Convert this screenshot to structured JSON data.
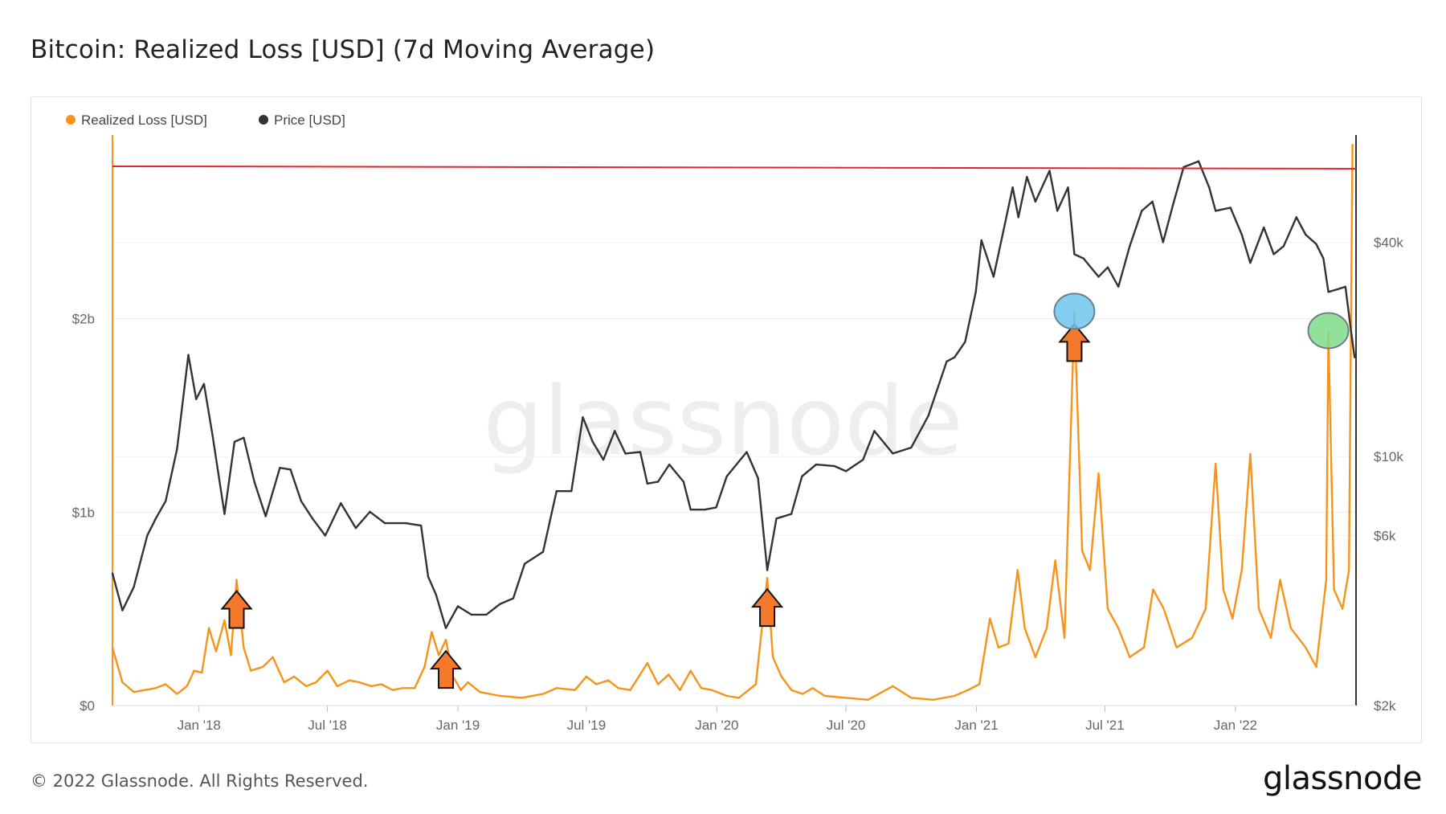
{
  "header": {
    "title": "Bitcoin: Realized Loss [USD] (7d Moving Average)"
  },
  "footer": {
    "copyright": "© 2022 Glassnode. All Rights Reserved.",
    "logo": "glassnode"
  },
  "watermark": "glassnode",
  "colors": {
    "loss": "#f7931a",
    "price": "#333333",
    "ath_line": "#e0262b",
    "arrow": "#f5792a",
    "blue_marker": "#6ec6f0",
    "green_marker": "#7fdc8a"
  },
  "icons": [
    "up-arrow-icon",
    "circle-marker-icon"
  ],
  "chart_data": {
    "type": "line",
    "title": "Bitcoin: Realized Loss [USD] (7d Moving Average)",
    "legend": {
      "placement": "top-left",
      "items": [
        {
          "label": "Realized Loss [USD]",
          "color": "#f7931a"
        },
        {
          "label": "Price [USD]",
          "color": "#333333"
        }
      ]
    },
    "x_ticks": [
      "Jan '18",
      "Jul '18",
      "Jan '19",
      "Jul '19",
      "Jan '20",
      "Jul '20",
      "Jan '21",
      "Jul '21",
      "Jan '22"
    ],
    "x_tick_dates": [
      "2018-01-01",
      "2018-07-01",
      "2019-01-01",
      "2019-07-01",
      "2020-01-01",
      "2020-07-01",
      "2021-01-01",
      "2021-07-01",
      "2022-01-01"
    ],
    "x_range": [
      "2017-09-01",
      "2022-06-20"
    ],
    "y_left": {
      "ticks": [
        0,
        1000000000,
        2000000000
      ],
      "labels": [
        "$0",
        "$1b",
        "$2b"
      ],
      "range": [
        0,
        2950000000
      ]
    },
    "y_right": {
      "scale": "log",
      "ticks": [
        2000,
        6000,
        10000,
        40000
      ],
      "labels": [
        "$2k",
        "$6k",
        "$10k",
        "$40k"
      ],
      "range": [
        2000,
        80000
      ]
    },
    "series": [
      {
        "name": "Realized Loss [USD]",
        "axis": "left",
        "points": [
          [
            "2017-09-01",
            300000000
          ],
          [
            "2017-09-15",
            120000000
          ],
          [
            "2017-10-01",
            70000000
          ],
          [
            "2017-11-01",
            90000000
          ],
          [
            "2017-11-15",
            110000000
          ],
          [
            "2017-12-01",
            60000000
          ],
          [
            "2017-12-15",
            100000000
          ],
          [
            "2017-12-25",
            180000000
          ],
          [
            "2018-01-05",
            170000000
          ],
          [
            "2018-01-15",
            400000000
          ],
          [
            "2018-01-25",
            280000000
          ],
          [
            "2018-02-06",
            440000000
          ],
          [
            "2018-02-15",
            260000000
          ],
          [
            "2018-02-23",
            650000000
          ],
          [
            "2018-03-05",
            300000000
          ],
          [
            "2018-03-15",
            180000000
          ],
          [
            "2018-04-01",
            200000000
          ],
          [
            "2018-04-15",
            250000000
          ],
          [
            "2018-05-01",
            120000000
          ],
          [
            "2018-05-15",
            150000000
          ],
          [
            "2018-06-01",
            100000000
          ],
          [
            "2018-06-15",
            120000000
          ],
          [
            "2018-07-01",
            180000000
          ],
          [
            "2018-07-15",
            100000000
          ],
          [
            "2018-08-01",
            130000000
          ],
          [
            "2018-08-15",
            120000000
          ],
          [
            "2018-09-01",
            100000000
          ],
          [
            "2018-09-15",
            110000000
          ],
          [
            "2018-10-01",
            80000000
          ],
          [
            "2018-10-15",
            90000000
          ],
          [
            "2018-11-01",
            90000000
          ],
          [
            "2018-11-15",
            200000000
          ],
          [
            "2018-11-25",
            380000000
          ],
          [
            "2018-12-05",
            260000000
          ],
          [
            "2018-12-15",
            340000000
          ],
          [
            "2018-12-25",
            150000000
          ],
          [
            "2019-01-05",
            80000000
          ],
          [
            "2019-01-15",
            120000000
          ],
          [
            "2019-02-01",
            70000000
          ],
          [
            "2019-03-01",
            50000000
          ],
          [
            "2019-04-01",
            40000000
          ],
          [
            "2019-05-01",
            60000000
          ],
          [
            "2019-05-20",
            90000000
          ],
          [
            "2019-06-15",
            80000000
          ],
          [
            "2019-07-01",
            150000000
          ],
          [
            "2019-07-15",
            110000000
          ],
          [
            "2019-08-01",
            130000000
          ],
          [
            "2019-08-15",
            90000000
          ],
          [
            "2019-09-01",
            80000000
          ],
          [
            "2019-09-25",
            220000000
          ],
          [
            "2019-10-10",
            110000000
          ],
          [
            "2019-10-25",
            160000000
          ],
          [
            "2019-11-10",
            80000000
          ],
          [
            "2019-11-25",
            180000000
          ],
          [
            "2019-12-10",
            90000000
          ],
          [
            "2019-12-25",
            80000000
          ],
          [
            "2020-01-15",
            50000000
          ],
          [
            "2020-02-01",
            40000000
          ],
          [
            "2020-02-25",
            110000000
          ],
          [
            "2020-03-12",
            660000000
          ],
          [
            "2020-03-20",
            250000000
          ],
          [
            "2020-04-01",
            150000000
          ],
          [
            "2020-04-15",
            80000000
          ],
          [
            "2020-05-01",
            60000000
          ],
          [
            "2020-05-15",
            90000000
          ],
          [
            "2020-06-01",
            50000000
          ],
          [
            "2020-07-01",
            40000000
          ],
          [
            "2020-08-01",
            30000000
          ],
          [
            "2020-09-05",
            100000000
          ],
          [
            "2020-10-01",
            40000000
          ],
          [
            "2020-11-01",
            30000000
          ],
          [
            "2020-12-01",
            50000000
          ],
          [
            "2020-12-20",
            80000000
          ],
          [
            "2021-01-05",
            110000000
          ],
          [
            "2021-01-20",
            450000000
          ],
          [
            "2021-02-01",
            300000000
          ],
          [
            "2021-02-15",
            320000000
          ],
          [
            "2021-02-28",
            700000000
          ],
          [
            "2021-03-10",
            400000000
          ],
          [
            "2021-03-25",
            250000000
          ],
          [
            "2021-04-10",
            400000000
          ],
          [
            "2021-04-22",
            750000000
          ],
          [
            "2021-05-05",
            350000000
          ],
          [
            "2021-05-19",
            2030000000
          ],
          [
            "2021-05-30",
            800000000
          ],
          [
            "2021-06-10",
            700000000
          ],
          [
            "2021-06-22",
            1200000000
          ],
          [
            "2021-07-05",
            500000000
          ],
          [
            "2021-07-20",
            400000000
          ],
          [
            "2021-08-05",
            250000000
          ],
          [
            "2021-08-25",
            300000000
          ],
          [
            "2021-09-07",
            600000000
          ],
          [
            "2021-09-22",
            500000000
          ],
          [
            "2021-10-10",
            300000000
          ],
          [
            "2021-11-01",
            350000000
          ],
          [
            "2021-11-20",
            500000000
          ],
          [
            "2021-12-04",
            1250000000
          ],
          [
            "2021-12-15",
            600000000
          ],
          [
            "2021-12-28",
            450000000
          ],
          [
            "2022-01-10",
            700000000
          ],
          [
            "2022-01-22",
            1300000000
          ],
          [
            "2022-02-03",
            500000000
          ],
          [
            "2022-02-20",
            350000000
          ],
          [
            "2022-03-05",
            650000000
          ],
          [
            "2022-03-20",
            400000000
          ],
          [
            "2022-04-10",
            300000000
          ],
          [
            "2022-04-25",
            200000000
          ],
          [
            "2022-05-09",
            650000000
          ],
          [
            "2022-05-12",
            1930000000
          ],
          [
            "2022-05-20",
            600000000
          ],
          [
            "2022-06-01",
            500000000
          ],
          [
            "2022-06-10",
            700000000
          ],
          [
            "2022-06-15",
            2900000000
          ]
        ]
      },
      {
        "name": "Price [USD]",
        "axis": "right",
        "points": [
          [
            "2017-09-01",
            4700
          ],
          [
            "2017-09-15",
            3700
          ],
          [
            "2017-10-01",
            4300
          ],
          [
            "2017-10-20",
            6000
          ],
          [
            "2017-11-01",
            6700
          ],
          [
            "2017-11-15",
            7500
          ],
          [
            "2017-12-01",
            10500
          ],
          [
            "2017-12-17",
            19300
          ],
          [
            "2017-12-28",
            14500
          ],
          [
            "2018-01-08",
            16000
          ],
          [
            "2018-01-20",
            11500
          ],
          [
            "2018-02-06",
            6900
          ],
          [
            "2018-02-20",
            11000
          ],
          [
            "2018-03-05",
            11300
          ],
          [
            "2018-03-20",
            8500
          ],
          [
            "2018-04-05",
            6800
          ],
          [
            "2018-04-25",
            9300
          ],
          [
            "2018-05-10",
            9200
          ],
          [
            "2018-05-25",
            7500
          ],
          [
            "2018-06-10",
            6700
          ],
          [
            "2018-06-28",
            6000
          ],
          [
            "2018-07-20",
            7400
          ],
          [
            "2018-08-10",
            6300
          ],
          [
            "2018-08-30",
            7000
          ],
          [
            "2018-09-20",
            6500
          ],
          [
            "2018-10-20",
            6500
          ],
          [
            "2018-11-10",
            6400
          ],
          [
            "2018-11-20",
            4600
          ],
          [
            "2018-12-01",
            4100
          ],
          [
            "2018-12-15",
            3300
          ],
          [
            "2019-01-01",
            3800
          ],
          [
            "2019-01-20",
            3600
          ],
          [
            "2019-02-10",
            3600
          ],
          [
            "2019-03-01",
            3850
          ],
          [
            "2019-03-20",
            4000
          ],
          [
            "2019-04-05",
            5000
          ],
          [
            "2019-05-01",
            5400
          ],
          [
            "2019-05-20",
            8000
          ],
          [
            "2019-06-10",
            8000
          ],
          [
            "2019-06-26",
            12900
          ],
          [
            "2019-07-10",
            11000
          ],
          [
            "2019-07-25",
            9800
          ],
          [
            "2019-08-10",
            11800
          ],
          [
            "2019-08-25",
            10200
          ],
          [
            "2019-09-15",
            10300
          ],
          [
            "2019-09-25",
            8400
          ],
          [
            "2019-10-10",
            8500
          ],
          [
            "2019-10-26",
            9500
          ],
          [
            "2019-11-15",
            8500
          ],
          [
            "2019-11-25",
            7100
          ],
          [
            "2019-12-15",
            7100
          ],
          [
            "2019-12-31",
            7200
          ],
          [
            "2020-01-15",
            8800
          ],
          [
            "2020-02-12",
            10300
          ],
          [
            "2020-02-28",
            8700
          ],
          [
            "2020-03-12",
            4800
          ],
          [
            "2020-03-25",
            6700
          ],
          [
            "2020-04-15",
            6900
          ],
          [
            "2020-04-30",
            8800
          ],
          [
            "2020-05-20",
            9500
          ],
          [
            "2020-06-15",
            9400
          ],
          [
            "2020-07-01",
            9100
          ],
          [
            "2020-07-25",
            9800
          ],
          [
            "2020-08-10",
            11800
          ],
          [
            "2020-09-05",
            10200
          ],
          [
            "2020-10-01",
            10600
          ],
          [
            "2020-10-25",
            13000
          ],
          [
            "2020-11-20",
            18500
          ],
          [
            "2020-12-01",
            19000
          ],
          [
            "2020-12-16",
            21000
          ],
          [
            "2020-12-31",
            29000
          ],
          [
            "2021-01-08",
            40500
          ],
          [
            "2021-01-25",
            32000
          ],
          [
            "2021-02-10",
            45000
          ],
          [
            "2021-02-21",
            57000
          ],
          [
            "2021-03-01",
            47000
          ],
          [
            "2021-03-13",
            61000
          ],
          [
            "2021-03-25",
            52000
          ],
          [
            "2021-04-14",
            63500
          ],
          [
            "2021-04-25",
            49000
          ],
          [
            "2021-05-10",
            57000
          ],
          [
            "2021-05-19",
            37000
          ],
          [
            "2021-06-01",
            36000
          ],
          [
            "2021-06-22",
            32000
          ],
          [
            "2021-07-05",
            34000
          ],
          [
            "2021-07-20",
            30000
          ],
          [
            "2021-08-05",
            39000
          ],
          [
            "2021-08-22",
            49000
          ],
          [
            "2021-09-06",
            52000
          ],
          [
            "2021-09-21",
            40000
          ],
          [
            "2021-10-05",
            51000
          ],
          [
            "2021-10-20",
            65000
          ],
          [
            "2021-11-10",
            67500
          ],
          [
            "2021-11-25",
            57000
          ],
          [
            "2021-12-04",
            49000
          ],
          [
            "2021-12-25",
            50000
          ],
          [
            "2022-01-10",
            42000
          ],
          [
            "2022-01-22",
            35000
          ],
          [
            "2022-02-10",
            44000
          ],
          [
            "2022-02-24",
            37000
          ],
          [
            "2022-03-10",
            39000
          ],
          [
            "2022-03-28",
            47000
          ],
          [
            "2022-04-10",
            42000
          ],
          [
            "2022-04-25",
            39500
          ],
          [
            "2022-05-05",
            36000
          ],
          [
            "2022-05-12",
            29000
          ],
          [
            "2022-05-25",
            29500
          ],
          [
            "2022-06-05",
            30000
          ],
          [
            "2022-06-13",
            22500
          ],
          [
            "2022-06-18",
            19000
          ]
        ]
      }
    ],
    "annotations": [
      {
        "type": "horizontal_line",
        "color": "#e0262b",
        "y_right": 65000
      },
      {
        "type": "arrow",
        "date": "2018-02-23"
      },
      {
        "type": "arrow",
        "date": "2018-12-15"
      },
      {
        "type": "arrow",
        "date": "2020-03-12"
      },
      {
        "type": "arrow",
        "date": "2021-05-19"
      },
      {
        "type": "circle",
        "date": "2021-05-19",
        "color": "#6ec6f0"
      },
      {
        "type": "circle",
        "date": "2022-05-12",
        "color": "#7fdc8a"
      }
    ]
  }
}
